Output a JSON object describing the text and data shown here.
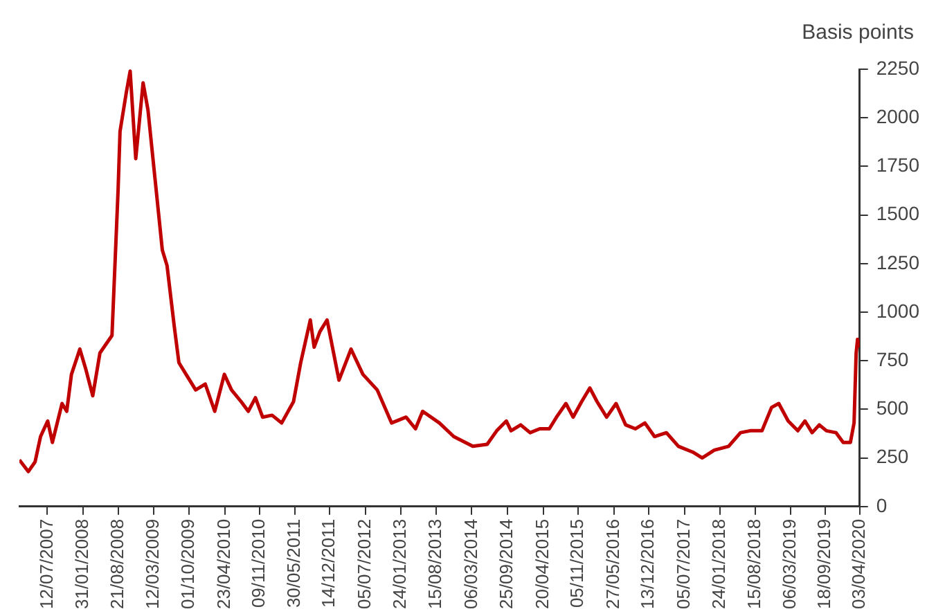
{
  "chart_data": {
    "type": "line",
    "ylabel": "Basis points",
    "x": [
      "2007-02-02",
      "2007-03-25",
      "2007-05-03",
      "2007-06-03",
      "2007-07-14",
      "2007-08-10",
      "2007-10-04",
      "2007-10-31",
      "2007-11-27",
      "2008-01-14",
      "2008-02-16",
      "2008-03-28",
      "2008-05-08",
      "2008-07-16",
      "2008-08-20",
      "2008-08-31",
      "2008-10-06",
      "2008-10-28",
      "2008-11-29",
      "2009-01-10",
      "2009-02-07",
      "2009-03-20",
      "2009-04-30",
      "2009-05-27",
      "2009-07-07",
      "2009-08-03",
      "2009-09-13",
      "2009-11-07",
      "2010-01-01",
      "2010-02-24",
      "2010-04-20",
      "2010-05-31",
      "2010-07-25",
      "2010-09-04",
      "2010-10-15",
      "2010-11-25",
      "2011-01-18",
      "2011-03-14",
      "2011-05-21",
      "2011-07-01",
      "2011-08-25",
      "2011-09-16",
      "2011-10-19",
      "2011-11-29",
      "2012-02-05",
      "2012-04-14",
      "2012-06-21",
      "2012-09-11",
      "2012-12-02",
      "2013-02-23",
      "2013-04-18",
      "2013-05-29",
      "2013-09-02",
      "2013-11-23",
      "2014-03-12",
      "2014-06-02",
      "2014-07-27",
      "2014-09-20",
      "2014-10-17",
      "2014-12-11",
      "2015-02-03",
      "2015-03-30",
      "2015-05-24",
      "2015-07-04",
      "2015-08-27",
      "2015-10-07",
      "2015-11-25",
      "2016-01-11",
      "2016-02-21",
      "2016-04-16",
      "2016-06-09",
      "2016-08-03",
      "2016-09-27",
      "2016-11-21",
      "2017-01-15",
      "2017-03-24",
      "2017-06-01",
      "2017-08-22",
      "2017-10-15",
      "2017-12-23",
      "2018-03-15",
      "2018-05-22",
      "2018-07-16",
      "2018-09-22",
      "2018-11-16",
      "2018-12-27",
      "2019-02-19",
      "2019-04-15",
      "2019-05-26",
      "2019-07-06",
      "2019-08-16",
      "2019-09-26",
      "2019-11-20",
      "2019-12-31",
      "2020-02-10",
      "2020-03-02",
      "2020-03-14",
      "2020-03-22",
      "2020-04-03"
    ],
    "series": [
      {
        "color": "#c00000",
        "values": [
          240,
          180,
          230,
          360,
          440,
          330,
          530,
          490,
          680,
          810,
          710,
          570,
          790,
          880,
          1630,
          1930,
          2130,
          2240,
          1790,
          2180,
          2040,
          1680,
          1320,
          1240,
          930,
          740,
          680,
          600,
          630,
          490,
          680,
          600,
          540,
          490,
          560,
          460,
          470,
          430,
          540,
          740,
          960,
          820,
          900,
          960,
          650,
          810,
          680,
          600,
          430,
          460,
          400,
          490,
          430,
          360,
          310,
          320,
          390,
          440,
          390,
          420,
          380,
          400,
          400,
          460,
          530,
          460,
          540,
          610,
          540,
          460,
          530,
          420,
          400,
          430,
          360,
          380,
          310,
          280,
          250,
          290,
          310,
          380,
          390,
          390,
          510,
          530,
          440,
          390,
          440,
          380,
          420,
          390,
          380,
          330,
          330,
          430,
          790,
          860,
          820
        ]
      }
    ],
    "xlim": [
      "2007-02-02",
      "2020-04-03"
    ],
    "xticks": [
      {
        "value": "2007-07-12",
        "label": "12/07/2007"
      },
      {
        "value": "2008-01-31",
        "label": "31/01/2008"
      },
      {
        "value": "2008-08-21",
        "label": "21/08/2008"
      },
      {
        "value": "2009-03-12",
        "label": "12/03/2009"
      },
      {
        "value": "2009-10-01",
        "label": "01/10/2009"
      },
      {
        "value": "2010-04-23",
        "label": "23/04/2010"
      },
      {
        "value": "2010-11-09",
        "label": "09/11/2010"
      },
      {
        "value": "2011-05-30",
        "label": "30/05/2011"
      },
      {
        "value": "2011-12-14",
        "label": "14/12/2011"
      },
      {
        "value": "2012-07-05",
        "label": "05/07/2012"
      },
      {
        "value": "2013-01-24",
        "label": "24/01/2013"
      },
      {
        "value": "2013-08-15",
        "label": "15/08/2013"
      },
      {
        "value": "2014-03-06",
        "label": "06/03/2014"
      },
      {
        "value": "2014-09-25",
        "label": "25/09/2014"
      },
      {
        "value": "2015-04-20",
        "label": "20/04/2015"
      },
      {
        "value": "2015-11-05",
        "label": "05/11/2015"
      },
      {
        "value": "2016-05-27",
        "label": "27/05/2016"
      },
      {
        "value": "2016-12-13",
        "label": "13/12/2016"
      },
      {
        "value": "2017-07-05",
        "label": "05/07/2017"
      },
      {
        "value": "2018-01-24",
        "label": "24/01/2018"
      },
      {
        "value": "2018-08-15",
        "label": "15/08/2018"
      },
      {
        "value": "2019-03-06",
        "label": "06/03/2019"
      },
      {
        "value": "2019-09-18",
        "label": "18/09/2019"
      },
      {
        "value": "2020-04-03",
        "label": "03/04/2020"
      }
    ],
    "ylim": [
      0,
      2250
    ],
    "yticks": [
      0,
      250,
      500,
      750,
      1000,
      1250,
      1500,
      1750,
      2000,
      2250
    ],
    "grid": false,
    "legend": false,
    "marker": "none",
    "line_style": "solid"
  }
}
